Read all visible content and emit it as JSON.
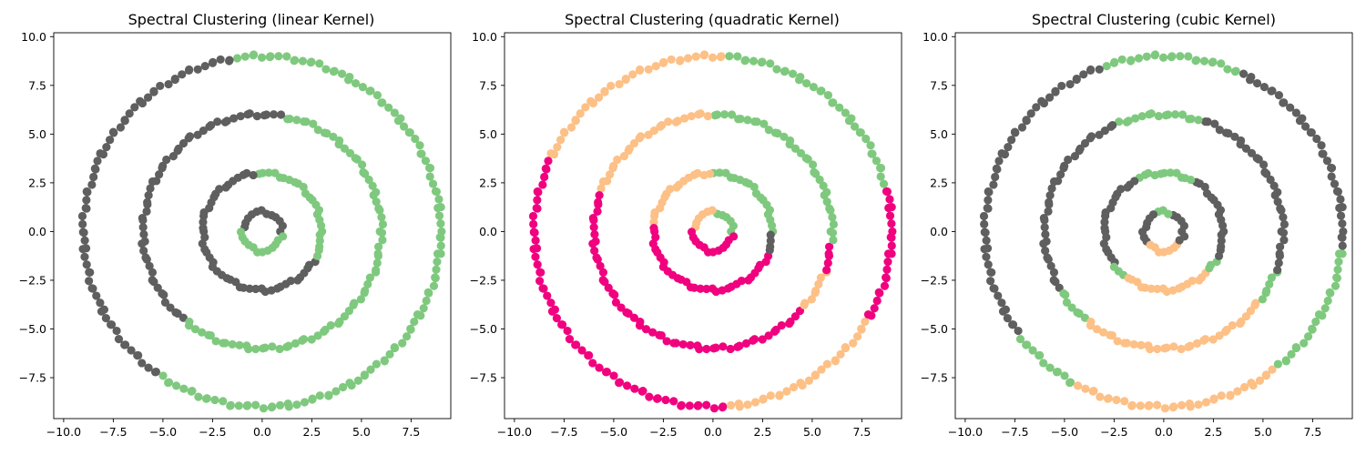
{
  "colors": {
    "gray": "#5f5f5f",
    "green": "#7fc97f",
    "orange": "#fdc086",
    "magenta": "#f0027f"
  },
  "chart_data": [
    {
      "type": "scatter",
      "title": "Spectral Clustering (linear Kernel)",
      "xlim": [
        -10.5,
        9.5
      ],
      "ylim": [
        -9.6,
        10.2
      ],
      "xticks": [
        -10.0,
        -7.5,
        -5.0,
        -2.5,
        0.0,
        2.5,
        5.0,
        7.5
      ],
      "yticks": [
        -7.5,
        -5.0,
        -2.5,
        0.0,
        2.5,
        5.0,
        7.5,
        10.0
      ],
      "x_tick_labels": [
        "−10.0",
        "−7.5",
        "−5.0",
        "−2.5",
        "0.0",
        "2.5",
        "5.0",
        "7.5"
      ],
      "y_tick_labels": [
        "−7.5",
        "−5.0",
        "−2.5",
        "0.0",
        "2.5",
        "5.0",
        "7.5",
        "10.0"
      ],
      "rings": [
        {
          "radius": 1.0,
          "segments": [
            {
              "from_deg": 0,
              "to_deg": 180,
              "color": "#5f5f5f"
            },
            {
              "from_deg": 180,
              "to_deg": 360,
              "color": "#7fc97f"
            }
          ]
        },
        {
          "radius": 3.0,
          "segments": [
            {
              "from_deg": 95,
              "to_deg": 330,
              "color": "#5f5f5f"
            },
            {
              "from_deg": 330,
              "to_deg": 455,
              "color": "#7fc97f"
            }
          ]
        },
        {
          "radius": 6.0,
          "segments": [
            {
              "from_deg": 80,
              "to_deg": 230,
              "color": "#5f5f5f"
            },
            {
              "from_deg": 230,
              "to_deg": 440,
              "color": "#7fc97f"
            }
          ]
        },
        {
          "radius": 9.0,
          "segments": [
            {
              "from_deg": 100,
              "to_deg": 235,
              "color": "#5f5f5f"
            },
            {
              "from_deg": 235,
              "to_deg": 460,
              "color": "#7fc97f"
            }
          ]
        }
      ]
    },
    {
      "type": "scatter",
      "title": "Spectral Clustering (quadratic Kernel)",
      "xlim": [
        -10.5,
        9.5
      ],
      "ylim": [
        -9.6,
        10.2
      ],
      "xticks": [
        -10.0,
        -7.5,
        -5.0,
        -2.5,
        0.0,
        2.5,
        5.0,
        7.5
      ],
      "yticks": [
        -7.5,
        -5.0,
        -2.5,
        0.0,
        2.5,
        5.0,
        7.5,
        10.0
      ],
      "x_tick_labels": [
        "−10.0",
        "−7.5",
        "−5.0",
        "−2.5",
        "0.0",
        "2.5",
        "5.0",
        "7.5"
      ],
      "y_tick_labels": [
        "−7.5",
        "−5.0",
        "−2.5",
        "0.0",
        "2.5",
        "5.0",
        "7.5",
        "10.0"
      ],
      "rings": [
        {
          "radius": 1.0,
          "segments": [
            {
              "from_deg": 90,
              "to_deg": 180,
              "color": "#fdc086"
            },
            {
              "from_deg": 180,
              "to_deg": 350,
              "color": "#f0027f"
            },
            {
              "from_deg": 350,
              "to_deg": 450,
              "color": "#7fc97f"
            }
          ]
        },
        {
          "radius": 3.0,
          "segments": [
            {
              "from_deg": 90,
              "to_deg": 175,
              "color": "#fdc086"
            },
            {
              "from_deg": 175,
              "to_deg": 340,
              "color": "#f0027f"
            },
            {
              "from_deg": 340,
              "to_deg": 360,
              "color": "#5f5f5f"
            },
            {
              "from_deg": 0,
              "to_deg": 90,
              "color": "#7fc97f"
            }
          ]
        },
        {
          "radius": 6.0,
          "segments": [
            {
              "from_deg": 90,
              "to_deg": 160,
              "color": "#fdc086"
            },
            {
              "from_deg": 160,
              "to_deg": 320,
              "color": "#f0027f"
            },
            {
              "from_deg": 320,
              "to_deg": 340,
              "color": "#fdc086"
            },
            {
              "from_deg": 340,
              "to_deg": 355,
              "color": "#f0027f"
            },
            {
              "from_deg": 355,
              "to_deg": 450,
              "color": "#7fc97f"
            }
          ]
        },
        {
          "radius": 9.0,
          "segments": [
            {
              "from_deg": 85,
              "to_deg": 155,
              "color": "#fdc086"
            },
            {
              "from_deg": 155,
              "to_deg": 275,
              "color": "#f0027f"
            },
            {
              "from_deg": 275,
              "to_deg": 330,
              "color": "#fdc086"
            },
            {
              "from_deg": 330,
              "to_deg": 375,
              "color": "#f0027f"
            },
            {
              "from_deg": 375,
              "to_deg": 445,
              "color": "#7fc97f"
            }
          ]
        }
      ]
    },
    {
      "type": "scatter",
      "title": "Spectral Clustering (cubic Kernel)",
      "xlim": [
        -10.5,
        9.5
      ],
      "ylim": [
        -9.6,
        10.2
      ],
      "xticks": [
        -10.0,
        -7.5,
        -5.0,
        -2.5,
        0.0,
        2.5,
        5.0,
        7.5
      ],
      "yticks": [
        -7.5,
        -5.0,
        -2.5,
        0.0,
        2.5,
        5.0,
        7.5,
        10.0
      ],
      "x_tick_labels": [
        "−10.0",
        "−7.5",
        "−5.0",
        "−2.5",
        "0.0",
        "2.5",
        "5.0",
        "7.5"
      ],
      "y_tick_labels": [
        "−7.5",
        "−5.0",
        "−2.5",
        "0.0",
        "2.5",
        "5.0",
        "7.5",
        "10.0"
      ],
      "rings": [
        {
          "radius": 1.0,
          "segments": [
            {
              "from_deg": 70,
              "to_deg": 110,
              "color": "#7fc97f"
            },
            {
              "from_deg": 110,
              "to_deg": 225,
              "color": "#5f5f5f"
            },
            {
              "from_deg": 225,
              "to_deg": 320,
              "color": "#fdc086"
            },
            {
              "from_deg": 320,
              "to_deg": 430,
              "color": "#5f5f5f"
            }
          ]
        },
        {
          "radius": 3.0,
          "segments": [
            {
              "from_deg": 60,
              "to_deg": 115,
              "color": "#7fc97f"
            },
            {
              "from_deg": 115,
              "to_deg": 215,
              "color": "#5f5f5f"
            },
            {
              "from_deg": 215,
              "to_deg": 230,
              "color": "#7fc97f"
            },
            {
              "from_deg": 230,
              "to_deg": 315,
              "color": "#fdc086"
            },
            {
              "from_deg": 315,
              "to_deg": 330,
              "color": "#7fc97f"
            },
            {
              "from_deg": 330,
              "to_deg": 420,
              "color": "#5f5f5f"
            }
          ]
        },
        {
          "radius": 6.0,
          "segments": [
            {
              "from_deg": 70,
              "to_deg": 115,
              "color": "#7fc97f"
            },
            {
              "from_deg": 115,
              "to_deg": 210,
              "color": "#5f5f5f"
            },
            {
              "from_deg": 210,
              "to_deg": 230,
              "color": "#7fc97f"
            },
            {
              "from_deg": 230,
              "to_deg": 325,
              "color": "#fdc086"
            },
            {
              "from_deg": 325,
              "to_deg": 340,
              "color": "#7fc97f"
            },
            {
              "from_deg": 340,
              "to_deg": 430,
              "color": "#5f5f5f"
            }
          ]
        },
        {
          "radius": 9.0,
          "segments": [
            {
              "from_deg": 65,
              "to_deg": 110,
              "color": "#7fc97f"
            },
            {
              "from_deg": 110,
              "to_deg": 215,
              "color": "#5f5f5f"
            },
            {
              "from_deg": 215,
              "to_deg": 240,
              "color": "#7fc97f"
            },
            {
              "from_deg": 240,
              "to_deg": 310,
              "color": "#fdc086"
            },
            {
              "from_deg": 310,
              "to_deg": 355,
              "color": "#7fc97f"
            },
            {
              "from_deg": 355,
              "to_deg": 425,
              "color": "#5f5f5f"
            }
          ]
        }
      ]
    }
  ]
}
